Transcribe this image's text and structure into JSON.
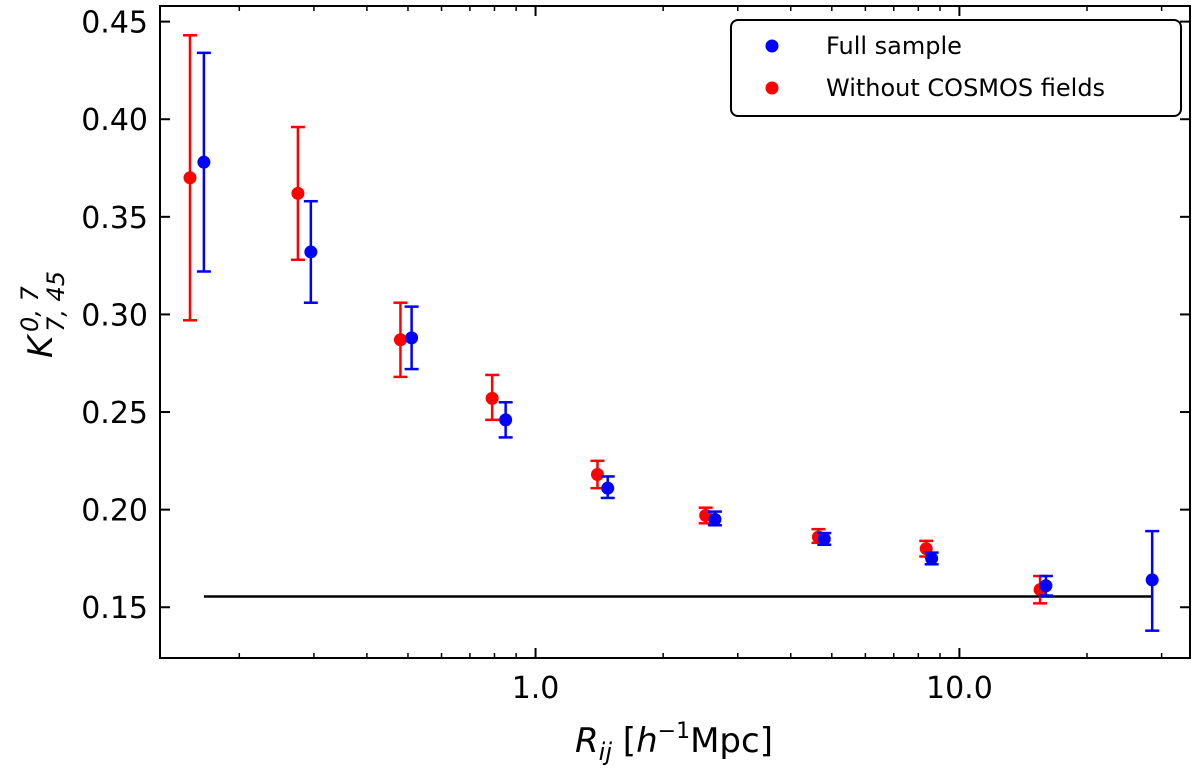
{
  "chart_data": {
    "type": "scatter",
    "title": "",
    "xscale": "log",
    "xlim": [
      0.13,
      35
    ],
    "ylim": [
      0.124,
      0.458
    ],
    "xlabel": {
      "main": "R",
      "sub": "ij",
      "bracket_open": " [",
      "h": "h",
      "exp": "−1",
      "unit": "Mpc]"
    },
    "ylabel": {
      "main": "K",
      "sup": "0, 7",
      "sub": "7, 45"
    },
    "x_ticks": [
      {
        "value": 1.0,
        "label": "1.0"
      },
      {
        "value": 10.0,
        "label": "10.0"
      }
    ],
    "y_ticks": [
      {
        "value": 0.15,
        "label": "0.15"
      },
      {
        "value": 0.2,
        "label": "0.20"
      },
      {
        "value": 0.25,
        "label": "0.25"
      },
      {
        "value": 0.3,
        "label": "0.30"
      },
      {
        "value": 0.35,
        "label": "0.35"
      },
      {
        "value": 0.4,
        "label": "0.40"
      },
      {
        "value": 0.45,
        "label": "0.45"
      }
    ],
    "series": [
      {
        "name": "Full sample",
        "color": "#0000ff",
        "points": [
          {
            "x": 0.165,
            "y": 0.378,
            "lo": 0.322,
            "hi": 0.434
          },
          {
            "x": 0.295,
            "y": 0.332,
            "lo": 0.306,
            "hi": 0.358
          },
          {
            "x": 0.51,
            "y": 0.288,
            "lo": 0.272,
            "hi": 0.304
          },
          {
            "x": 0.85,
            "y": 0.246,
            "lo": 0.237,
            "hi": 0.255
          },
          {
            "x": 1.48,
            "y": 0.211,
            "lo": 0.206,
            "hi": 0.217
          },
          {
            "x": 2.65,
            "y": 0.195,
            "lo": 0.192,
            "hi": 0.199
          },
          {
            "x": 4.8,
            "y": 0.185,
            "lo": 0.182,
            "hi": 0.188
          },
          {
            "x": 8.6,
            "y": 0.175,
            "lo": 0.172,
            "hi": 0.178
          },
          {
            "x": 16.0,
            "y": 0.161,
            "lo": 0.156,
            "hi": 0.166
          },
          {
            "x": 28.5,
            "y": 0.164,
            "lo": 0.138,
            "hi": 0.189
          }
        ]
      },
      {
        "name": "Without COSMOS fields",
        "color": "#ff0000",
        "points": [
          {
            "x": 0.153,
            "y": 0.37,
            "lo": 0.297,
            "hi": 0.443
          },
          {
            "x": 0.275,
            "y": 0.362,
            "lo": 0.328,
            "hi": 0.396
          },
          {
            "x": 0.48,
            "y": 0.287,
            "lo": 0.268,
            "hi": 0.306
          },
          {
            "x": 0.79,
            "y": 0.257,
            "lo": 0.246,
            "hi": 0.269
          },
          {
            "x": 1.4,
            "y": 0.218,
            "lo": 0.211,
            "hi": 0.225
          },
          {
            "x": 2.52,
            "y": 0.197,
            "lo": 0.193,
            "hi": 0.201
          },
          {
            "x": 4.65,
            "y": 0.186,
            "lo": 0.183,
            "hi": 0.19
          },
          {
            "x": 8.35,
            "y": 0.18,
            "lo": 0.176,
            "hi": 0.184
          },
          {
            "x": 15.5,
            "y": 0.159,
            "lo": 0.152,
            "hi": 0.166
          }
        ]
      }
    ],
    "reference_line": {
      "y": 0.1555,
      "x_start": 0.165,
      "x_end": 28.5,
      "color": "#000000"
    },
    "legend": {
      "location": "top-right",
      "entries": [
        "Full sample",
        "Without COSMOS fields"
      ]
    }
  }
}
